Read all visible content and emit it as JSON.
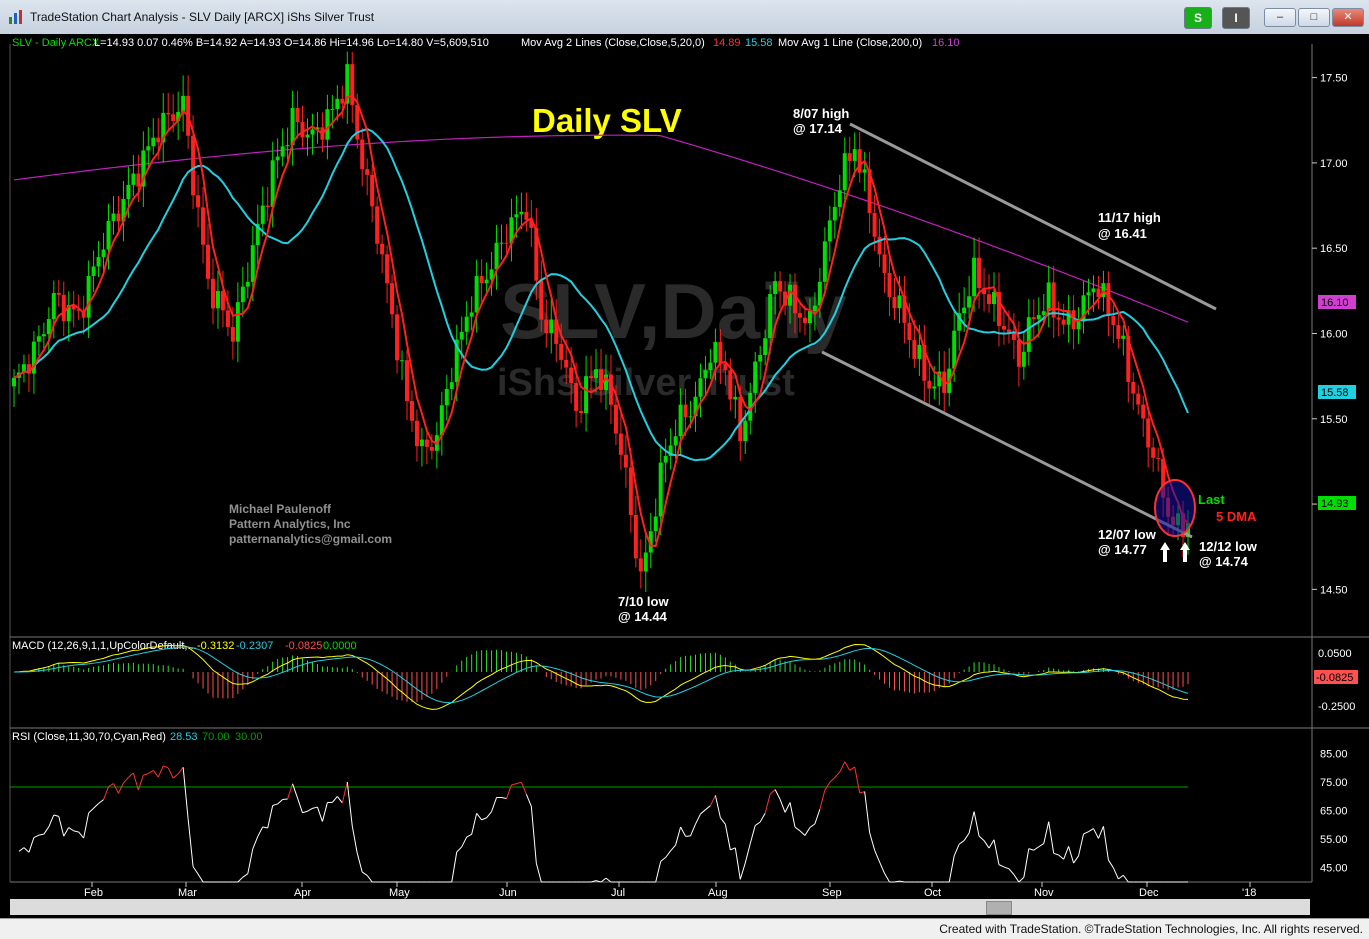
{
  "window": {
    "title": "TradeStation Chart Analysis - SLV Daily [ARCX] iShs Silver Trust",
    "btn_s": "S",
    "btn_i": "I",
    "min": "–",
    "max": "□",
    "close": "✕"
  },
  "header": {
    "symbol": "SLV - Daily  ARCX",
    "quote": "L=14.93  0.07  0.46%  B=14.92  A=14.93  O=14.86  Hi=14.96  Lo=14.80  V=5,609,510",
    "ma2": "Mov Avg 2 Lines (Close,Close,5,20,0)",
    "ma2_v1": "14.89",
    "ma2_v2": "15.58",
    "ma1": "Mov Avg 1 Line (Close,200,0)",
    "ma1_v": "16.10"
  },
  "chart_data": {
    "type": "candlestick",
    "title": "Daily SLV",
    "watermark1": "SLV,Daily",
    "watermark2": "iShs Silver Trust",
    "ylim": [
      14.25,
      17.65
    ],
    "y_ticks": [
      "17.50",
      "17.00",
      "16.50",
      "16.00",
      "15.50",
      "15.00",
      "14.50"
    ],
    "x_ticks": [
      "Feb",
      "Mar",
      "Apr",
      "May",
      "Jun",
      "Jul",
      "Aug",
      "Sep",
      "Oct",
      "Nov",
      "Dec",
      "'18"
    ],
    "price_anchors": [
      [
        0,
        15.7
      ],
      [
        5,
        15.95
      ],
      [
        8,
        16.2
      ],
      [
        13,
        16.1
      ],
      [
        18,
        16.55
      ],
      [
        24,
        16.9
      ],
      [
        29,
        17.2
      ],
      [
        34,
        17.35
      ],
      [
        36,
        16.9
      ],
      [
        39,
        16.3
      ],
      [
        44,
        16.0
      ],
      [
        48,
        16.5
      ],
      [
        52,
        16.95
      ],
      [
        56,
        17.25
      ],
      [
        60,
        17.15
      ],
      [
        64,
        17.3
      ],
      [
        67,
        17.5
      ],
      [
        70,
        17.0
      ],
      [
        73,
        16.6
      ],
      [
        76,
        16.1
      ],
      [
        79,
        15.6
      ],
      [
        82,
        15.3
      ],
      [
        85,
        15.4
      ],
      [
        88,
        15.8
      ],
      [
        92,
        16.2
      ],
      [
        96,
        16.4
      ],
      [
        99,
        16.6
      ],
      [
        103,
        16.75
      ],
      [
        106,
        16.1
      ],
      [
        110,
        15.9
      ],
      [
        113,
        15.55
      ],
      [
        117,
        15.8
      ],
      [
        120,
        15.6
      ],
      [
        123,
        15.15
      ],
      [
        126,
        14.55
      ],
      [
        128,
        14.85
      ],
      [
        131,
        15.3
      ],
      [
        134,
        15.5
      ],
      [
        137,
        15.6
      ],
      [
        140,
        15.9
      ],
      [
        143,
        15.8
      ],
      [
        146,
        15.4
      ],
      [
        150,
        15.9
      ],
      [
        153,
        16.3
      ],
      [
        157,
        16.15
      ],
      [
        160,
        16.05
      ],
      [
        163,
        16.5
      ],
      [
        166,
        16.9
      ],
      [
        169,
        17.1
      ],
      [
        172,
        16.75
      ],
      [
        175,
        16.3
      ],
      [
        178,
        16.15
      ],
      [
        181,
        15.9
      ],
      [
        184,
        15.7
      ],
      [
        187,
        15.7
      ],
      [
        190,
        16.1
      ],
      [
        193,
        16.35
      ],
      [
        196,
        16.2
      ],
      [
        199,
        16.05
      ],
      [
        202,
        15.85
      ],
      [
        205,
        16.1
      ],
      [
        208,
        16.2
      ],
      [
        211,
        16.05
      ],
      [
        214,
        16.1
      ],
      [
        217,
        16.3
      ],
      [
        220,
        16.15
      ],
      [
        223,
        15.9
      ],
      [
        226,
        15.55
      ],
      [
        229,
        15.3
      ],
      [
        232,
        14.95
      ],
      [
        234,
        14.85
      ],
      [
        236,
        14.9
      ]
    ],
    "ma_slow_label": "200-day moving average 16.10",
    "annotations": [
      {
        "label": "8/07 high",
        "value": "@ 17.14"
      },
      {
        "label": "11/17 high",
        "value": "@ 16.41"
      },
      {
        "label": "7/10 low",
        "value": "@ 14.44"
      },
      {
        "label": "12/07 low",
        "value": "@ 14.77"
      },
      {
        "label": "12/12 low",
        "value": "@ 14.74"
      },
      {
        "label": "Last"
      },
      {
        "label": "5 DMA"
      }
    ],
    "credit_lines": [
      "Michael Paulenoff",
      "Pattern Analytics, Inc",
      "patternanalytics@gmail.com"
    ],
    "axis_badges": {
      "ma200": "16.10",
      "ma20": "15.58",
      "last": "14.93"
    },
    "macd": {
      "label": "MACD (12,26,9,1,1,UpColorDefault,...",
      "v1": "-0.3132",
      "v2": "-0.2307",
      "v3": "-0.0825",
      "v4": "0.0000",
      "ticks": [
        "0.0500",
        "-0.2500"
      ],
      "badge": "-0.0825"
    },
    "rsi": {
      "label": "RSI (Close,11,30,70,Cyan,Red)",
      "v1": "28.53",
      "v2": "70.00",
      "v3": "30.00",
      "ticks": [
        "85.00",
        "75.00",
        "65.00",
        "55.00",
        "45.00"
      ]
    }
  },
  "colors": {
    "up": "#00dd00",
    "down": "#ff2020",
    "fast_ma": "#ff2020",
    "mid_ma": "#20d0e0",
    "slow_ma": "#c020c0",
    "title": "#ffff00"
  },
  "footer": {
    "credit": "Created with TradeStation. ©TradeStation Technologies, Inc. All rights reserved."
  }
}
